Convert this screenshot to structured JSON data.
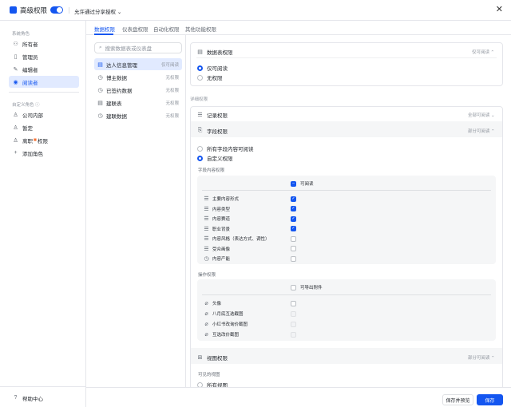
{
  "header": {
    "title": "高级权限",
    "toggle_on": true,
    "share_option": "允许通过分享授权",
    "close": "✕"
  },
  "sidebar": {
    "system_roles_label": "系统角色",
    "system_roles": [
      {
        "label": "所有者",
        "icon": "users-icon"
      },
      {
        "label": "管理员",
        "icon": "doc-icon"
      },
      {
        "label": "编辑者",
        "icon": "edit-icon"
      },
      {
        "label": "阅读者",
        "icon": "eye-icon",
        "active": true
      }
    ],
    "custom_roles_label": "自定义角色",
    "custom_roles": [
      {
        "label": "公司内部"
      },
      {
        "label": "暂定"
      },
      {
        "label": "离职",
        "badge": "■",
        "suffix": "权限"
      }
    ],
    "add_role": "添加角色",
    "help": "帮助中心"
  },
  "tabs": [
    "数据权限",
    "仪表盘权限",
    "自动化权限",
    "其他功能权限"
  ],
  "search": {
    "placeholder": "搜索数据表或仪表盘"
  },
  "tables": [
    {
      "name": "达人信息管理",
      "perm": "仅可阅读",
      "active": true
    },
    {
      "name": "博主数据",
      "perm": "无权限"
    },
    {
      "name": "已签约数据",
      "perm": "无权限"
    },
    {
      "name": "建联表",
      "perm": "无权限"
    },
    {
      "name": "建联数据",
      "perm": "无权限"
    }
  ],
  "table_perm": {
    "title": "数据表权限",
    "value": "仅可阅读",
    "options": [
      "仅可阅读",
      "无权限"
    ],
    "selected": 0
  },
  "detail": {
    "label": "详细权限",
    "record": {
      "title": "记录权限",
      "value": "全部可阅读"
    },
    "field": {
      "title": "字段权限",
      "value": "部分可阅读",
      "options": [
        "所有字段内容可阅读",
        "自定义权限"
      ],
      "selected": 1,
      "content_label": "字段内容权限",
      "content_header": "可阅读",
      "fields": [
        {
          "name": "主要内容形式",
          "checked": true
        },
        {
          "name": "内容类型",
          "checked": true
        },
        {
          "name": "内容赛道",
          "checked": true
        },
        {
          "name": "职业背景",
          "checked": true
        },
        {
          "name": "内容风格（表达方式、调性）",
          "checked": false
        },
        {
          "name": "受众画像",
          "checked": false
        },
        {
          "name": "内容产能",
          "checked": false
        }
      ],
      "ops_label": "操作权限",
      "ops_header": "可导出附件",
      "attachments": [
        {
          "name": "头像",
          "disabled": false
        },
        {
          "name": "八月底互选截图",
          "disabled": true
        },
        {
          "name": "小红书改询价截图",
          "disabled": true
        },
        {
          "name": "互选改价截图",
          "disabled": true
        }
      ]
    },
    "view": {
      "title": "视图权限",
      "value": "部分可阅读",
      "visible_label": "可见的视图",
      "option": "所有视图"
    }
  },
  "footer": {
    "save_preview": "保存并预览",
    "save": "保存"
  }
}
